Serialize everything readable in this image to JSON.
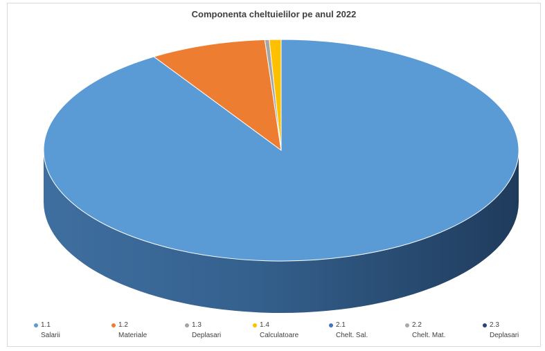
{
  "chart_data": {
    "type": "pie",
    "title": "Componenta cheltuielilor pe anul 2022",
    "series": [
      {
        "code": "1.1",
        "name": "Salarii",
        "value": 91.0,
        "color": "#5b9bd5"
      },
      {
        "code": "1.2",
        "name": "Materiale",
        "value": 7.9,
        "color": "#ed7d31"
      },
      {
        "code": "1.3",
        "name": "Deplasari",
        "value": 0.3,
        "color": "#a5a5a5"
      },
      {
        "code": "1.4",
        "name": "Calculatoare",
        "value": 0.8,
        "color": "#ffc000"
      },
      {
        "code": "2.1",
        "name": "Chelt. Sal.",
        "value": 0,
        "color": "#4472c4"
      },
      {
        "code": "2.2",
        "name": "Chelt. Mat.",
        "value": 0,
        "color": "#a9a9a9"
      },
      {
        "code": "2.3",
        "name": "Deplasari",
        "value": 0,
        "color": "#264478"
      }
    ],
    "legend_position": "bottom",
    "style": "3d"
  }
}
